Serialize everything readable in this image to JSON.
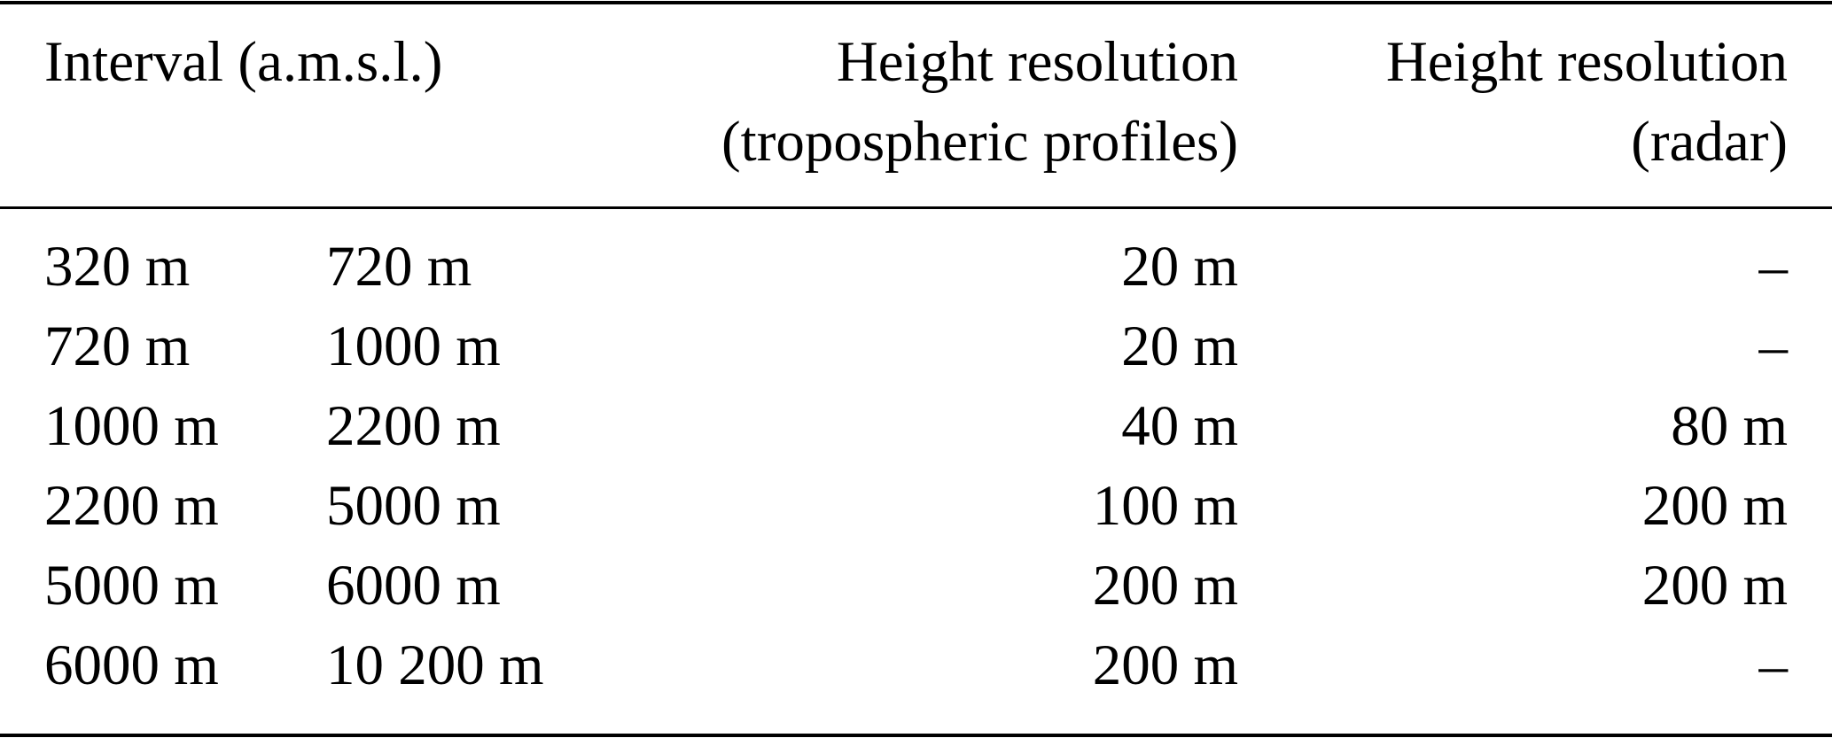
{
  "table": {
    "headers": {
      "interval": "Interval (a.m.s.l.)",
      "tropo_line1": "Height resolution",
      "tropo_line2": "(tropospheric profiles)",
      "radar_line1": "Height resolution",
      "radar_line2": "(radar)"
    },
    "rows": [
      {
        "from": "320 m",
        "to": "720 m",
        "tropo": "20 m",
        "radar": "–"
      },
      {
        "from": "720 m",
        "to": "1000 m",
        "tropo": "20 m",
        "radar": "–"
      },
      {
        "from": "1000 m",
        "to": "2200 m",
        "tropo": "40 m",
        "radar": "80 m"
      },
      {
        "from": "2200 m",
        "to": "5000 m",
        "tropo": "100 m",
        "radar": "200 m"
      },
      {
        "from": "5000 m",
        "to": "6000 m",
        "tropo": "200 m",
        "radar": "200 m"
      },
      {
        "from": "6000 m",
        "to": "10 200 m",
        "tropo": "200 m",
        "radar": "–"
      }
    ]
  }
}
